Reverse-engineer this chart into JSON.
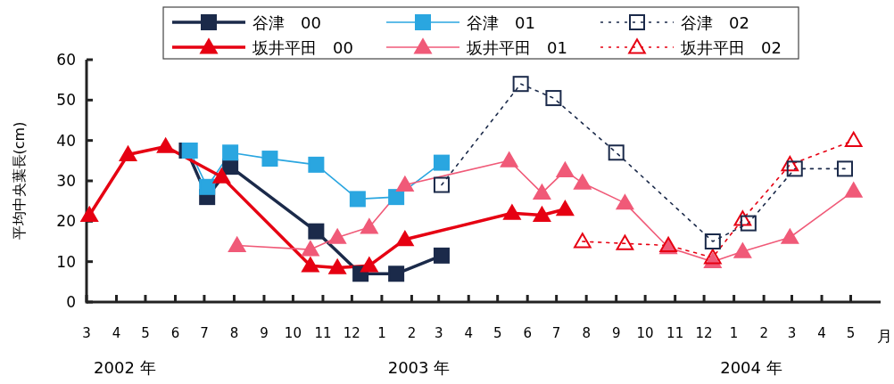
{
  "chart_data": {
    "type": "line",
    "xlabel": "月",
    "ylabel": "平均中央葉長(cm)",
    "annotations": [
      "2002 年",
      "2003 年",
      "2004 年"
    ],
    "xlim": [
      "2002-03",
      "2004-06"
    ],
    "ylim": [
      0,
      60
    ],
    "yticks": [
      0,
      10,
      20,
      30,
      40,
      50,
      60
    ],
    "xticks": [
      {
        "value": "2002-03",
        "label": "3"
      },
      {
        "value": "2002-04",
        "label": "4"
      },
      {
        "value": "2002-05",
        "label": "5"
      },
      {
        "value": "2002-06",
        "label": "6"
      },
      {
        "value": "2002-07",
        "label": "7"
      },
      {
        "value": "2002-08",
        "label": "8"
      },
      {
        "value": "2002-09",
        "label": "9"
      },
      {
        "value": "2002-10",
        "label": "10"
      },
      {
        "value": "2002-11",
        "label": "11"
      },
      {
        "value": "2002-12",
        "label": "12"
      },
      {
        "value": "2003-01",
        "label": "1"
      },
      {
        "value": "2003-02",
        "label": "2"
      },
      {
        "value": "2003-03",
        "label": "3"
      },
      {
        "value": "2003-04",
        "label": "4"
      },
      {
        "value": "2003-05",
        "label": "5"
      },
      {
        "value": "2003-06",
        "label": "6"
      },
      {
        "value": "2003-07",
        "label": "7"
      },
      {
        "value": "2003-08",
        "label": "8"
      },
      {
        "value": "2003-09",
        "label": "9"
      },
      {
        "value": "2003-10",
        "label": "10"
      },
      {
        "value": "2003-11",
        "label": "11"
      },
      {
        "value": "2003-12",
        "label": "12"
      },
      {
        "value": "2004-01",
        "label": "1"
      },
      {
        "value": "2004-02",
        "label": "2"
      },
      {
        "value": "2004-03",
        "label": "3"
      },
      {
        "value": "2004-04",
        "label": "4"
      },
      {
        "value": "2004-05",
        "label": "5"
      }
    ],
    "grid": false,
    "legend": "top",
    "series": [
      {
        "name": "谷津　00",
        "color": "#1b2a4a",
        "marker": "square",
        "line_style": "solid",
        "x": [
          "2002-06-13",
          "2002-07-04",
          "2002-07-28",
          "2002-10-25",
          "2002-12-10",
          "2003-01-16",
          "2003-03-04"
        ],
        "values": [
          37.5,
          26,
          33.5,
          17.5,
          7,
          7,
          11.5
        ]
      },
      {
        "name": "谷津　01",
        "color": "#2aa6e0",
        "marker": "square",
        "line_style": "solid",
        "x": [
          "2002-06-16",
          "2002-07-04",
          "2002-07-28",
          "2002-09-07",
          "2002-10-25",
          "2002-12-07",
          "2003-01-16",
          "2003-03-04"
        ],
        "values": [
          37.5,
          28.5,
          37,
          35.5,
          34,
          25.5,
          26,
          34.5
        ]
      },
      {
        "name": "谷津　02",
        "color": "#1b2a4a",
        "marker": "square",
        "line_style": "dotted",
        "x": [
          "2003-03-04",
          "2003-05-25",
          "2003-06-28",
          "2003-09-01",
          "2003-12-10",
          "2004-01-16",
          "2004-03-04",
          "2004-04-25"
        ],
        "values": [
          29,
          54,
          50.5,
          37,
          15,
          19.5,
          33,
          33
        ]
      },
      {
        "name": "坂井平田　00",
        "color": "#e60012",
        "marker": "triangle",
        "line_style": "solid",
        "x": [
          "2002-03-04",
          "2002-04-13",
          "2002-05-22",
          "2002-07-19",
          "2002-10-19",
          "2002-11-16",
          "2002-12-19",
          "2003-01-25",
          "2003-05-16",
          "2003-06-16",
          "2003-07-10"
        ],
        "values": [
          21.5,
          36.5,
          38.5,
          31,
          9,
          8.5,
          9,
          15.5,
          22,
          21.5,
          23
        ]
      },
      {
        "name": "坂井平田　01",
        "color": "#f05a78",
        "marker": "triangle",
        "line_style": "solid",
        "x": [
          "2002-08-04",
          "2002-10-19",
          "2002-11-16",
          "2002-12-19",
          "2003-01-25",
          "2003-05-13",
          "2003-06-16",
          "2003-07-10",
          "2003-07-28",
          "2003-09-10",
          "2003-10-25",
          "2003-12-10",
          "2004-01-10",
          "2004-02-28",
          "2004-05-04"
        ],
        "values": [
          14,
          13,
          16,
          18.5,
          29,
          35,
          27,
          32.5,
          29.5,
          24.5,
          13.5,
          10,
          12.5,
          16,
          27.5
        ]
      },
      {
        "name": "坂井平田　02",
        "color": "#e60012",
        "marker": "triangle",
        "line_style": "dotted",
        "x": [
          "2003-07-28",
          "2003-09-10",
          "2003-10-25",
          "2003-12-10",
          "2004-01-10",
          "2004-02-28",
          "2004-05-04"
        ],
        "values": [
          15,
          14.5,
          14,
          11,
          20.5,
          34,
          40
        ]
      }
    ]
  }
}
